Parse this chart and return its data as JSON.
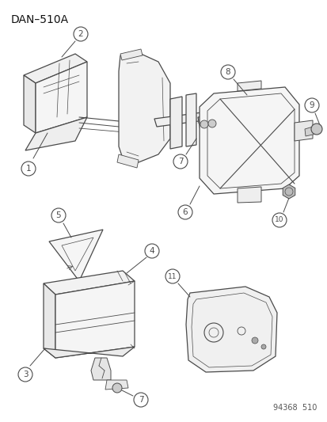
{
  "title": "DAN–510A",
  "footer": "94368  510",
  "bg_color": "#ffffff",
  "line_color": "#4a4a4a",
  "title_fontsize": 10,
  "footer_fontsize": 7,
  "label_fontsize": 7.5
}
